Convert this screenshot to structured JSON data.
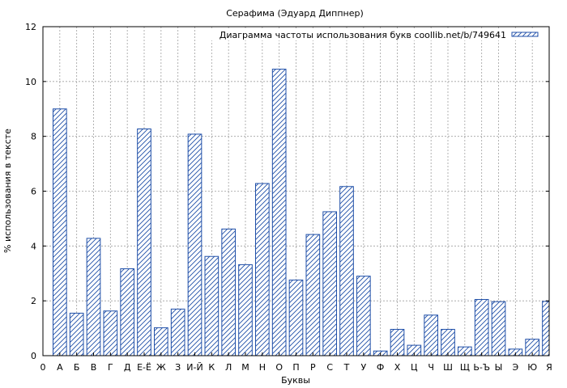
{
  "chart_data": {
    "type": "bar",
    "title": "Серафима (Эдуард Диппнер)",
    "xlabel": "Буквы",
    "ylabel": "% использования в тексте",
    "legend": "Диаграмма частоты использования букв coollib.net/b/749641",
    "legend_position": "top-right",
    "grid": true,
    "ylim": [
      0,
      12
    ],
    "yticks": [
      "0",
      "2",
      "4",
      "6",
      "8",
      "10",
      "12"
    ],
    "x_origin_label": "0",
    "categories": [
      "А",
      "Б",
      "В",
      "Г",
      "Д",
      "Е-Ё",
      "Ж",
      "З",
      "И-Й",
      "К",
      "Л",
      "М",
      "Н",
      "О",
      "П",
      "Р",
      "С",
      "Т",
      "У",
      "Ф",
      "Х",
      "Ц",
      "Ч",
      "Ш",
      "Щ",
      "Ь-Ъ",
      "Ы",
      "Э",
      "Ю",
      "Я"
    ],
    "values": [
      9.0,
      1.55,
      4.28,
      1.63,
      3.17,
      8.27,
      1.02,
      1.7,
      8.08,
      3.62,
      4.62,
      3.32,
      6.28,
      10.45,
      2.76,
      4.42,
      5.25,
      6.17,
      2.9,
      0.17,
      0.96,
      0.38,
      1.48,
      0.96,
      0.32,
      2.05,
      1.97,
      0.24,
      0.6,
      1.98
    ],
    "bar_color": "#1f4fa8"
  }
}
